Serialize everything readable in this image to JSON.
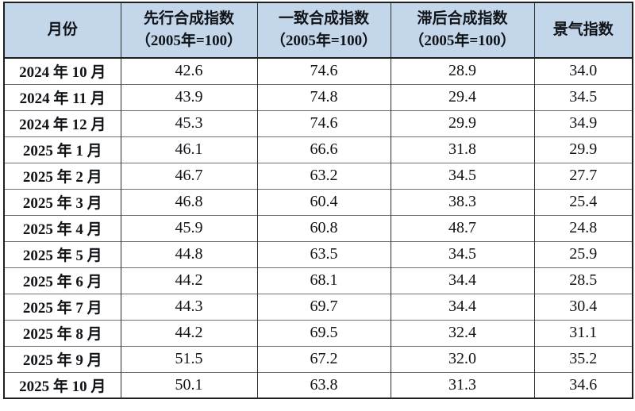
{
  "table": {
    "headers": [
      {
        "line1": "月份",
        "line2": ""
      },
      {
        "line1": "先行合成指数",
        "line2": "（2005年=100）"
      },
      {
        "line1": "一致合成指数",
        "line2": "（2005年=100）"
      },
      {
        "line1": "滞后合成指数",
        "line2": "（2005年=100）"
      },
      {
        "line1": "景气指数",
        "line2": ""
      }
    ],
    "rows": [
      {
        "month": "2024 年 10 月",
        "values": [
          "42.6",
          "74.6",
          "28.9",
          "34.0"
        ]
      },
      {
        "month": "2024 年 11 月",
        "values": [
          "43.9",
          "74.8",
          "29.4",
          "34.5"
        ]
      },
      {
        "month": "2024 年 12 月",
        "values": [
          "45.3",
          "74.6",
          "29.9",
          "34.9"
        ]
      },
      {
        "month": "2025 年 1 月",
        "values": [
          "46.1",
          "66.6",
          "31.8",
          "29.9"
        ]
      },
      {
        "month": "2025 年 2 月",
        "values": [
          "46.7",
          "63.2",
          "34.5",
          "27.7"
        ]
      },
      {
        "month": "2025 年 3 月",
        "values": [
          "46.8",
          "60.4",
          "38.3",
          "25.4"
        ]
      },
      {
        "month": "2025 年 4 月",
        "values": [
          "45.9",
          "60.8",
          "48.7",
          "24.8"
        ]
      },
      {
        "month": "2025 年 5 月",
        "values": [
          "44.8",
          "63.5",
          "34.5",
          "25.9"
        ]
      },
      {
        "month": "2025 年 6 月",
        "values": [
          "44.2",
          "68.1",
          "34.4",
          "28.5"
        ]
      },
      {
        "month": "2025 年 7 月",
        "values": [
          "44.3",
          "69.7",
          "34.4",
          "30.4"
        ]
      },
      {
        "month": "2025 年 8 月",
        "values": [
          "44.2",
          "69.5",
          "32.4",
          "31.1"
        ]
      },
      {
        "month": "2025 年 9 月",
        "values": [
          "51.5",
          "67.2",
          "32.0",
          "35.2"
        ]
      },
      {
        "month": "2025 年 10 月",
        "values": [
          "50.1",
          "63.8",
          "31.3",
          "34.6"
        ]
      }
    ]
  },
  "colors": {
    "header_bg": "#c3d6ea",
    "border_dark": "#1f1f1f",
    "border_gray": "#6f6f6f",
    "text": "#101318"
  },
  "chart_data": {
    "type": "table",
    "columns": [
      "月份",
      "先行合成指数（2005年=100）",
      "一致合成指数（2005年=100）",
      "滞后合成指数（2005年=100）",
      "景气指数"
    ],
    "rows": [
      [
        "2024年10月",
        42.6,
        74.6,
        28.9,
        34.0
      ],
      [
        "2024年11月",
        43.9,
        74.8,
        29.4,
        34.5
      ],
      [
        "2024年12月",
        45.3,
        74.6,
        29.9,
        34.9
      ],
      [
        "2025年1月",
        46.1,
        66.6,
        31.8,
        29.9
      ],
      [
        "2025年2月",
        46.7,
        63.2,
        34.5,
        27.7
      ],
      [
        "2025年3月",
        46.8,
        60.4,
        38.3,
        25.4
      ],
      [
        "2025年4月",
        45.9,
        60.8,
        48.7,
        24.8
      ],
      [
        "2025年5月",
        44.8,
        63.5,
        34.5,
        25.9
      ],
      [
        "2025年6月",
        44.2,
        68.1,
        34.4,
        28.5
      ],
      [
        "2025年7月",
        44.3,
        69.7,
        34.4,
        30.4
      ],
      [
        "2025年8月",
        44.2,
        69.5,
        32.4,
        31.1
      ],
      [
        "2025年9月",
        51.5,
        67.2,
        32.0,
        35.2
      ],
      [
        "2025年10月",
        50.1,
        63.8,
        31.3,
        34.6
      ]
    ]
  }
}
